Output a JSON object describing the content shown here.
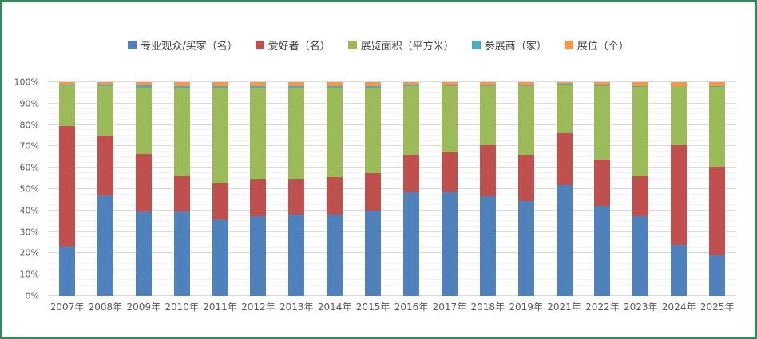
{
  "frame": {
    "border_color": "#38875d",
    "background": "#ffffff"
  },
  "chart_data": {
    "type": "bar",
    "variant": "100%-stacked-column",
    "title": "",
    "xlabel": "",
    "ylabel": "",
    "ylim": [
      0,
      100
    ],
    "grid": {
      "major_step_percent": 10,
      "minor_step_percent": 2.5,
      "grid_on": true
    },
    "legend_position": "top",
    "y_ticks": [
      "0%",
      "10%",
      "20%",
      "30%",
      "40%",
      "50%",
      "60%",
      "70%",
      "80%",
      "90%",
      "100%"
    ],
    "categories": [
      "2007年",
      "2008年",
      "2009年",
      "2010年",
      "2011年",
      "2012年",
      "2013年",
      "2014年",
      "2015年",
      "2016年",
      "2017年",
      "2018年",
      "2019年",
      "2021年",
      "2022年",
      "2023年",
      "2024年",
      "2025年"
    ],
    "series": [
      {
        "name": "专业观众/买家（名）",
        "color": "#4F81BD",
        "values": [
          23.0,
          47.0,
          39.5,
          39.5,
          36.0,
          37.5,
          38.0,
          38.0,
          40.0,
          48.5,
          48.5,
          46.5,
          44.5,
          52.0,
          42.0,
          37.5,
          24.0,
          19.0
        ]
      },
      {
        "name": "爱好者（名）",
        "color": "#C0504D",
        "values": [
          56.5,
          28.0,
          27.0,
          16.5,
          16.5,
          17.0,
          16.5,
          17.5,
          17.5,
          17.5,
          18.5,
          24.0,
          21.5,
          24.0,
          22.0,
          18.5,
          46.5,
          41.5
        ]
      },
      {
        "name": "展览面积（平方米）",
        "color": "#9BBB59",
        "values": [
          19.0,
          23.3,
          31.0,
          41.5,
          45.0,
          43.0,
          43.0,
          42.0,
          40.0,
          32.0,
          31.0,
          27.8,
          32.2,
          23.0,
          34.2,
          41.8,
          27.6,
          37.3
        ]
      },
      {
        "name": "参展商（家）",
        "color": "#4BACC6",
        "values": [
          0.5,
          0.6,
          1.2,
          0.5,
          0.5,
          0.5,
          0.5,
          0.5,
          0.5,
          0.8,
          0.7,
          0.4,
          0.5,
          0.3,
          0.4,
          0.5,
          0.2,
          0.2
        ]
      },
      {
        "name": "展位（个）",
        "color": "#F79646",
        "values": [
          1.0,
          1.1,
          1.3,
          2.0,
          2.0,
          2.0,
          2.0,
          2.0,
          2.0,
          1.2,
          1.3,
          1.3,
          1.3,
          0.7,
          1.4,
          1.7,
          1.7,
          2.0
        ]
      }
    ]
  }
}
